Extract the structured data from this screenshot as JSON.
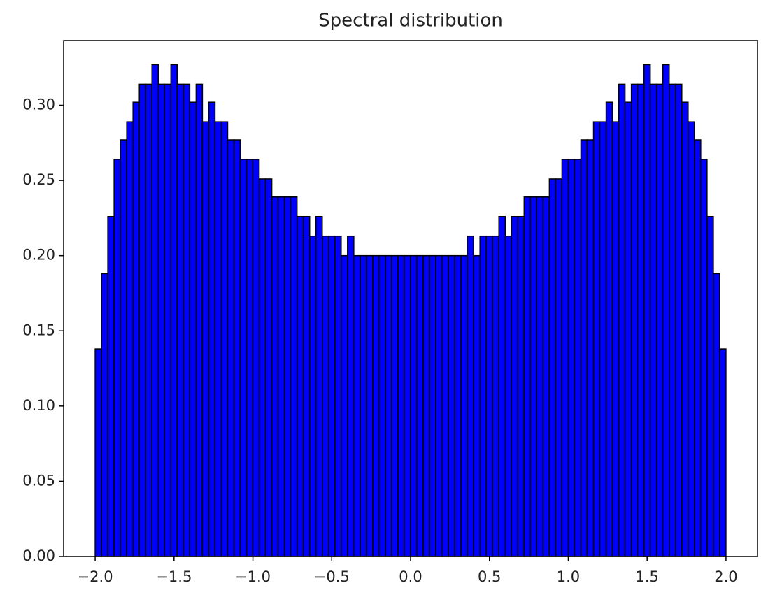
{
  "chart_data": {
    "type": "histogram",
    "title": "Spectral distribution",
    "bins": [
      -2.0,
      -1.96,
      -1.92,
      -1.88,
      -1.84,
      -1.8,
      -1.76,
      -1.72,
      -1.68,
      -1.64,
      -1.6,
      -1.56,
      -1.52,
      -1.48,
      -1.44,
      -1.4,
      -1.36,
      -1.32,
      -1.28,
      -1.24,
      -1.2,
      -1.16,
      -1.12,
      -1.08,
      -1.04,
      -1.0,
      -0.96,
      -0.92,
      -0.88,
      -0.84,
      -0.8,
      -0.76,
      -0.72,
      -0.68,
      -0.64,
      -0.6,
      -0.56,
      -0.52,
      -0.48,
      -0.44,
      -0.4,
      -0.36,
      -0.32,
      -0.28,
      -0.24,
      -0.2,
      -0.16,
      -0.12,
      -0.08,
      -0.04,
      0.0,
      0.04,
      0.08,
      0.12,
      0.16,
      0.2,
      0.24,
      0.28,
      0.32,
      0.36,
      0.4,
      0.44,
      0.48,
      0.52,
      0.56,
      0.6,
      0.64,
      0.68,
      0.72,
      0.76,
      0.8,
      0.84,
      0.88,
      0.92,
      0.96,
      1.0,
      1.04,
      1.08,
      1.12,
      1.16,
      1.2,
      1.24,
      1.28,
      1.32,
      1.36,
      1.4,
      1.44,
      1.48,
      1.52,
      1.56,
      1.6,
      1.64,
      1.68,
      1.72,
      1.76,
      1.8,
      1.84,
      1.88,
      1.92,
      1.96,
      2.0
    ],
    "values": [
      0.138,
      0.188,
      0.226,
      0.264,
      0.277,
      0.289,
      0.302,
      0.314,
      0.314,
      0.327,
      0.314,
      0.314,
      0.327,
      0.314,
      0.314,
      0.302,
      0.314,
      0.289,
      0.302,
      0.289,
      0.289,
      0.277,
      0.277,
      0.264,
      0.264,
      0.264,
      0.251,
      0.251,
      0.239,
      0.239,
      0.239,
      0.239,
      0.226,
      0.226,
      0.213,
      0.226,
      0.213,
      0.213,
      0.213,
      0.2,
      0.213,
      0.2,
      0.2,
      0.2,
      0.2,
      0.2,
      0.2,
      0.2,
      0.2,
      0.2,
      0.2,
      0.2,
      0.2,
      0.2,
      0.2,
      0.2,
      0.2,
      0.2,
      0.2,
      0.213,
      0.2,
      0.213,
      0.213,
      0.213,
      0.226,
      0.213,
      0.226,
      0.226,
      0.239,
      0.239,
      0.239,
      0.239,
      0.251,
      0.251,
      0.264,
      0.264,
      0.264,
      0.277,
      0.277,
      0.289,
      0.289,
      0.302,
      0.289,
      0.314,
      0.302,
      0.314,
      0.314,
      0.327,
      0.314,
      0.314,
      0.327,
      0.314,
      0.314,
      0.302,
      0.289,
      0.277,
      0.264,
      0.226,
      0.188,
      0.138
    ],
    "color": "#0000ff",
    "edgecolor": "#000000",
    "xlim": [
      -2.2,
      2.2
    ],
    "xticks": [
      {
        "value": -2.0,
        "label": "−2.0"
      },
      {
        "value": -1.5,
        "label": "−1.5"
      },
      {
        "value": -1.0,
        "label": "−1.0"
      },
      {
        "value": -0.5,
        "label": "−0.5"
      },
      {
        "value": 0,
        "label": "0.0"
      },
      {
        "value": 0.5,
        "label": "0.5"
      },
      {
        "value": 1.0,
        "label": "1.0"
      },
      {
        "value": 1.5,
        "label": "1.5"
      },
      {
        "value": 2.0,
        "label": "2.0"
      }
    ],
    "ylim": [
      0,
      0.343
    ],
    "yticks": [
      {
        "value": 0,
        "label": "0.00"
      },
      {
        "value": 0.05,
        "label": "0.05"
      },
      {
        "value": 0.1,
        "label": "0.10"
      },
      {
        "value": 0.15,
        "label": "0.15"
      },
      {
        "value": 0.2,
        "label": "0.20"
      },
      {
        "value": 0.25,
        "label": "0.25"
      },
      {
        "value": 0.3,
        "label": "0.30"
      }
    ]
  }
}
